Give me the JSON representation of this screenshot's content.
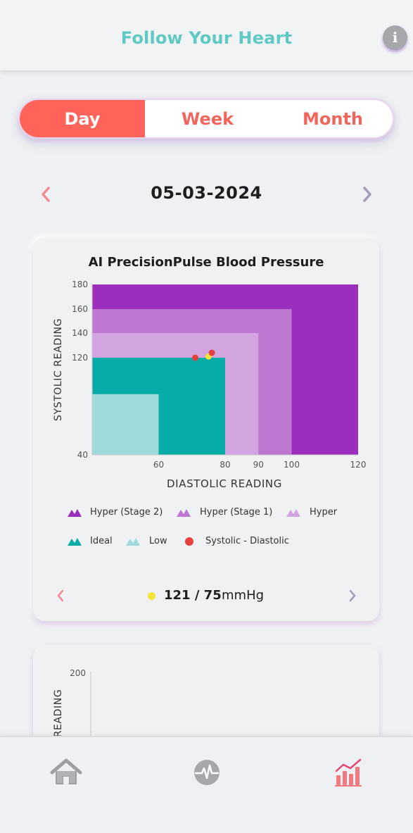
{
  "header": {
    "title": "Follow Your Heart",
    "info_glyph": "i"
  },
  "tabs": [
    {
      "label": "Day",
      "active": true
    },
    {
      "label": "Week",
      "active": false
    },
    {
      "label": "Month",
      "active": false
    }
  ],
  "date_nav": {
    "date": "05-03-2024"
  },
  "card": {
    "title": "AI PrecisionPulse Blood Pressure",
    "chart_data": {
      "type": "scatter",
      "xlabel": "DIASTOLIC READING",
      "ylabel": "SYSTOLIC READING",
      "xlim": [
        40,
        120
      ],
      "ylim": [
        40,
        180
      ],
      "x_ticks": [
        "60",
        "80",
        "90",
        "100",
        "120"
      ],
      "y_ticks": [
        "180",
        "160",
        "140",
        "120",
        "40"
      ],
      "zones": [
        {
          "name": "Hyper (Stage 2)",
          "x_max": 120,
          "y_max": 180,
          "color": "#9b2ebd"
        },
        {
          "name": "Hyper (Stage 1)",
          "x_max": 100,
          "y_max": 160,
          "color": "#bd77d1"
        },
        {
          "name": "Hyper",
          "x_max": 90,
          "y_max": 140,
          "color": "#d3a5e0"
        },
        {
          "name": "Ideal",
          "x_max": 80,
          "y_max": 120,
          "color": "#07aba7"
        },
        {
          "name": "Low",
          "x_max": 60,
          "y_max": 90,
          "color": "#9fdada"
        }
      ],
      "points": [
        {
          "x": 71,
          "y": 120,
          "color": "#e8403f"
        },
        {
          "x": 75,
          "y": 121,
          "color": "#f6e33a"
        },
        {
          "x": 76,
          "y": 124,
          "color": "#e8403f"
        }
      ],
      "legend": [
        {
          "label": "Hyper (Stage 2)",
          "color": "#9b2ebd",
          "icon": "mountain"
        },
        {
          "label": "Hyper (Stage 1)",
          "color": "#bd77d1",
          "icon": "mountain"
        },
        {
          "label": "Hyper",
          "color": "#d3a5e0",
          "icon": "mountain"
        },
        {
          "label": "Ideal",
          "color": "#07aba7",
          "icon": "mountain"
        },
        {
          "label": "Low",
          "color": "#9fdada",
          "icon": "mountain"
        },
        {
          "label": "Systolic - Diastolic",
          "color": "#e8403f",
          "icon": "dot"
        }
      ]
    },
    "reading": {
      "value": "121 / 75",
      "unit": "mmHg",
      "dot_color": "#f6e33a"
    }
  },
  "card2": {
    "y_tick_top": "200",
    "ylabel_partial": "READING"
  },
  "bottom_nav": [
    {
      "name": "home",
      "icon": "home-icon"
    },
    {
      "name": "pulse",
      "icon": "heart-rate-icon"
    },
    {
      "name": "stats",
      "icon": "bar-chart-icon"
    }
  ],
  "colors": {
    "accent": "#ff635a",
    "teal": "#5fc9c4",
    "purple": "#9b2ebd"
  }
}
